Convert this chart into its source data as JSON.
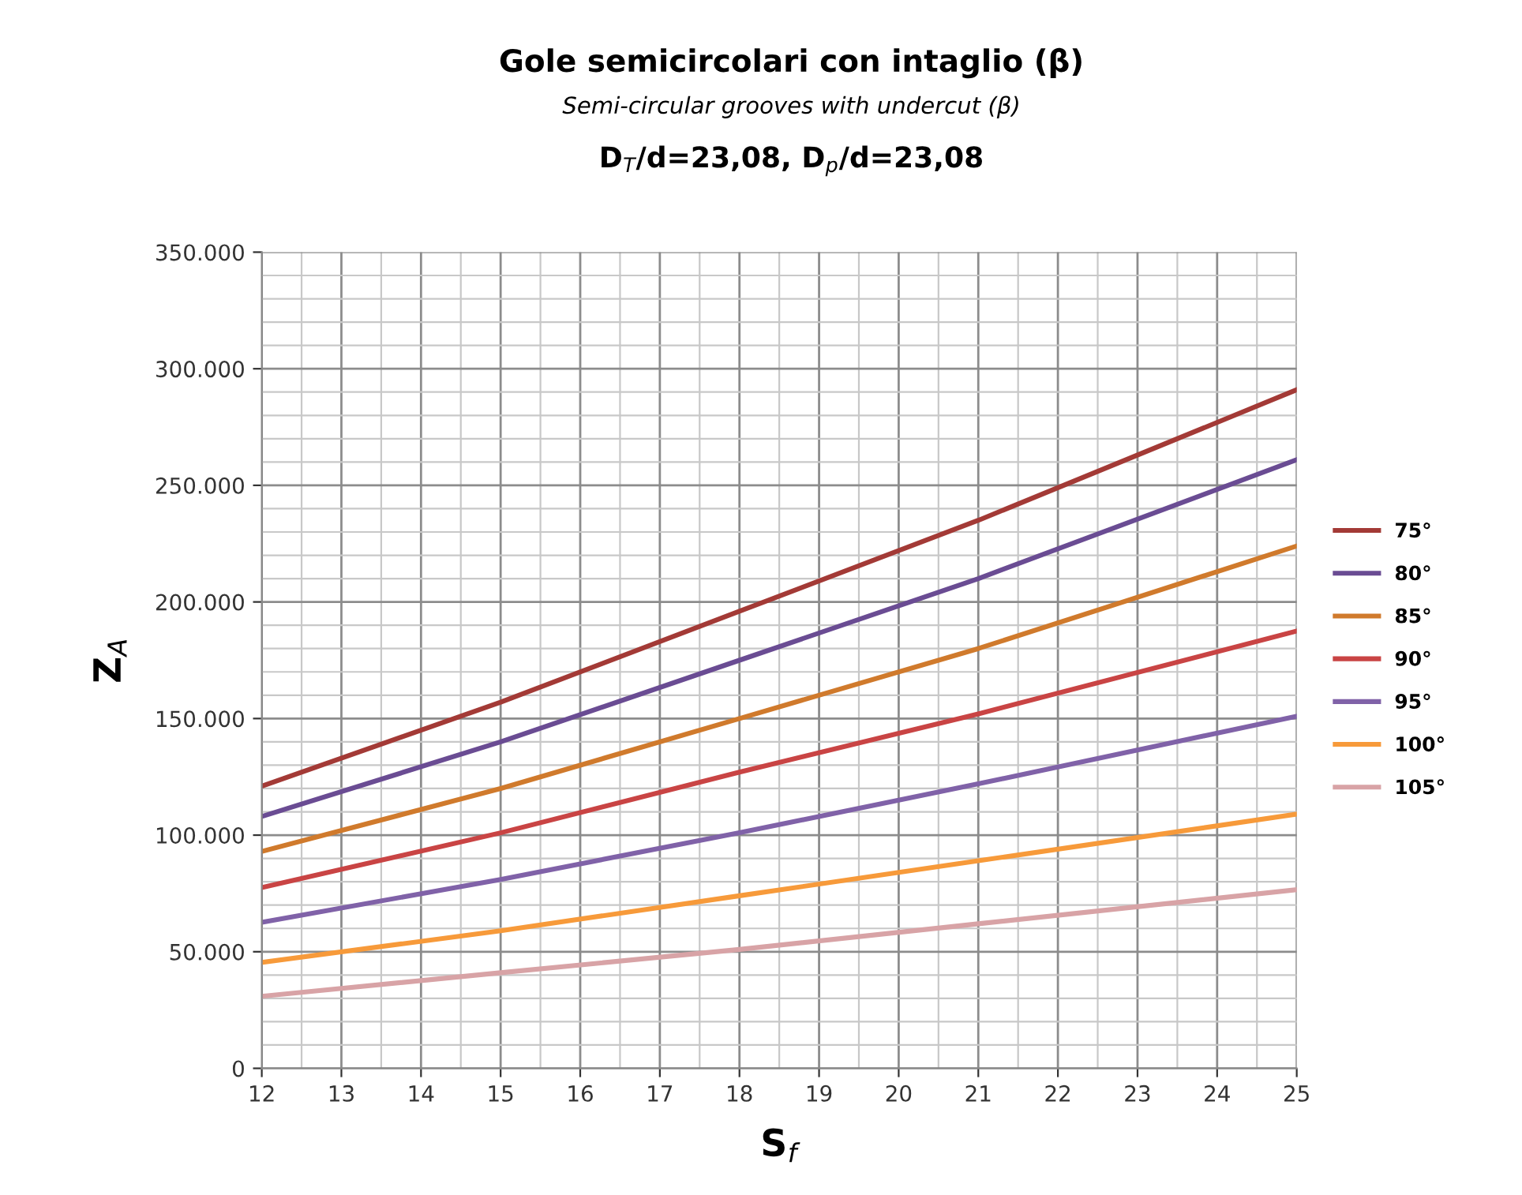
{
  "chart_data": {
    "type": "line",
    "title": "Gole semicircolari con intaglio (β)",
    "subtitle": "Semi-circular grooves with undercut (β)",
    "annotations": [
      "D$_{T}$/d=23,08, D$_{p}$/d=23,08"
    ],
    "xlabel": "S$_{f}$",
    "ylabel": "Z$_{A}$",
    "x": [
      12,
      15,
      18,
      21,
      25
    ],
    "series": [
      {
        "name": "75°",
        "color": "#a33a36",
        "values": [
          121000,
          157000,
          196000,
          235000,
          291000
        ]
      },
      {
        "name": "80°",
        "color": "#6a4c93",
        "values": [
          108000,
          140000,
          175000,
          210000,
          261000
        ]
      },
      {
        "name": "85°",
        "color": "#d07a2c",
        "values": [
          93000,
          120000,
          150000,
          180000,
          224000
        ]
      },
      {
        "name": "90°",
        "color": "#c94444",
        "values": [
          77500,
          101000,
          127000,
          152000,
          187500
        ]
      },
      {
        "name": "95°",
        "color": "#8062a8",
        "values": [
          62600,
          81000,
          101000,
          122000,
          151000
        ]
      },
      {
        "name": "100°",
        "color": "#f79a3a",
        "values": [
          45400,
          59000,
          74000,
          89000,
          109000
        ]
      },
      {
        "name": "105°",
        "color": "#d8a3a6",
        "values": [
          30900,
          41000,
          51000,
          62000,
          76600
        ]
      }
    ],
    "xlim": [
      12,
      25
    ],
    "xticks": [
      12,
      13,
      14,
      15,
      16,
      17,
      18,
      19,
      20,
      21,
      22,
      23,
      24,
      25
    ],
    "ylim": [
      0,
      350000
    ],
    "yticks": [
      0,
      {
        "value": 50000,
        "label": "50.000"
      },
      {
        "value": 100000,
        "label": "100.000"
      },
      {
        "value": 150000,
        "label": "150.000"
      },
      {
        "value": 200000,
        "label": "200.000"
      },
      {
        "value": 250000,
        "label": "250.000"
      },
      {
        "value": 300000,
        "label": "300.000"
      },
      {
        "value": 350000,
        "label": "350.000"
      }
    ],
    "grid": true,
    "legend": "right",
    "marker": "none",
    "line_style": "solid"
  }
}
